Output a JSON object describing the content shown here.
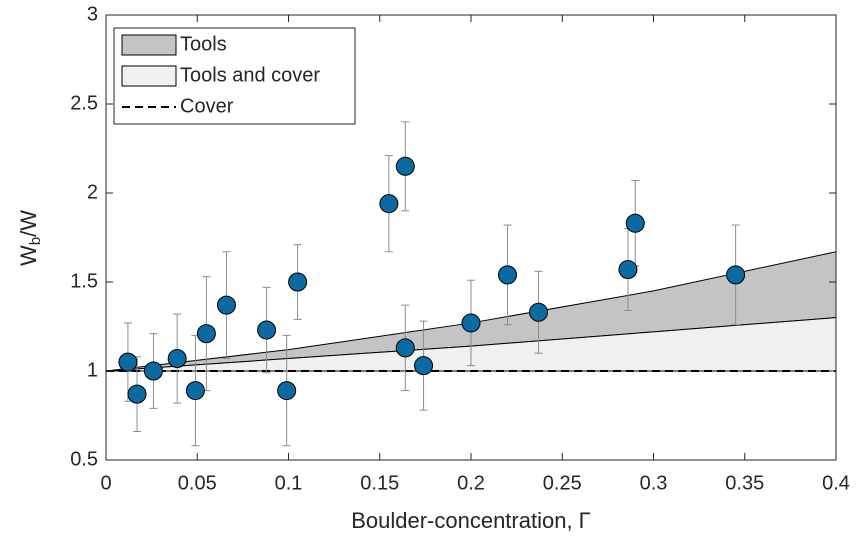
{
  "chart_data": {
    "type": "scatter",
    "xlabel": "Boulder-concentration, Γ",
    "ylabel": {
      "main": "W",
      "sub": "b",
      "rest": "/W"
    },
    "xlim": [
      0,
      0.4
    ],
    "xticks": [
      0,
      0.05,
      0.1,
      0.15,
      0.2,
      0.25,
      0.3,
      0.35,
      0.4
    ],
    "ylim": [
      0.5,
      3
    ],
    "yticks": [
      0.5,
      1,
      1.5,
      2,
      2.5,
      3
    ],
    "color": "#0b6aa2",
    "error_color": "#8c8c8c",
    "x": [
      0.012,
      0.017,
      0.026,
      0.039,
      0.049,
      0.055,
      0.066,
      0.088,
      0.099,
      0.105,
      0.155,
      0.164,
      0.164,
      0.174,
      0.2,
      0.22,
      0.237,
      0.286,
      0.29,
      0.345
    ],
    "values": [
      1.05,
      0.87,
      1.0,
      1.07,
      0.89,
      1.21,
      1.37,
      1.23,
      0.89,
      1.5,
      1.94,
      2.15,
      1.13,
      1.03,
      1.27,
      1.54,
      1.33,
      1.57,
      1.83,
      1.54
    ],
    "errors": [
      0.22,
      0.21,
      0.21,
      0.25,
      0.31,
      0.32,
      0.3,
      0.24,
      0.31,
      0.21,
      0.27,
      0.25,
      0.24,
      0.25,
      0.24,
      0.28,
      0.23,
      0.23,
      0.24,
      0.28
    ],
    "curve_x": [
      0,
      0.1,
      0.2,
      0.3,
      0.4
    ],
    "bands": [
      {
        "name": "Tools",
        "color": "#c4c4c4",
        "lower": [
          1,
          1.07,
          1.14,
          1.22,
          1.3
        ],
        "upper": [
          1,
          1.12,
          1.27,
          1.45,
          1.67
        ]
      },
      {
        "name": "Tools and cover",
        "color": "#f0f0f0",
        "lower": [
          1,
          1,
          1,
          1,
          1
        ],
        "upper": [
          1,
          1.07,
          1.14,
          1.22,
          1.3
        ]
      }
    ],
    "lines": [
      {
        "name": "Cover",
        "color": "#000000",
        "dashed": true,
        "values": [
          1,
          1,
          1,
          1,
          1
        ]
      }
    ],
    "legend": "upper left"
  }
}
